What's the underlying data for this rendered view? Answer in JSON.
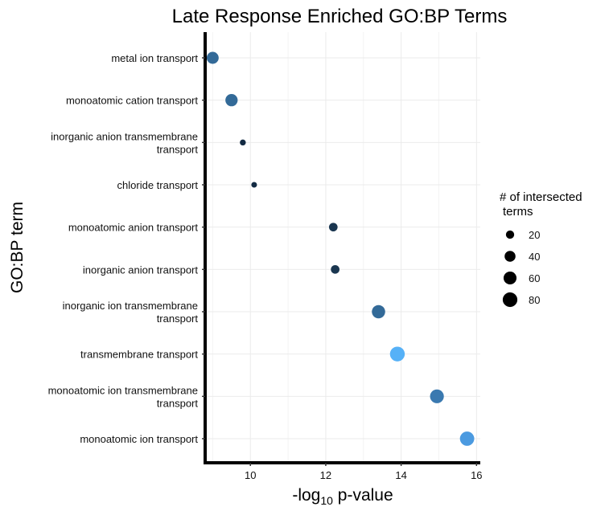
{
  "chart_data": {
    "type": "scatter",
    "title": "Late Response Enriched GO:BP Terms",
    "xlabel_main": "-log",
    "xlabel_sub": "10",
    "xlabel_rest": " p-value",
    "ylabel": "GO:BP term",
    "xlim": [
      8.8,
      16.1
    ],
    "x_ticks": [
      10,
      12,
      14,
      16
    ],
    "grid": true,
    "legend_position": "right",
    "size_legend": {
      "title_lines": [
        "# of intersected",
        "terms"
      ],
      "values": [
        20,
        40,
        60,
        80
      ]
    },
    "color_scale": {
      "low": "#132b43",
      "high": "#56b1f7"
    },
    "points": [
      {
        "term_lines": [
          "metal ion transport"
        ],
        "x": 9.0,
        "size": 50,
        "color": "#336a98"
      },
      {
        "term_lines": [
          "monoatomic cation transport"
        ],
        "x": 9.5,
        "size": 53,
        "color": "#336a98"
      },
      {
        "term_lines": [
          "inorganic anion transmembrane",
          "transport"
        ],
        "x": 9.8,
        "size": 8,
        "color": "#132b43"
      },
      {
        "term_lines": [
          "chloride transport"
        ],
        "x": 10.1,
        "size": 7,
        "color": "#132b43"
      },
      {
        "term_lines": [
          "monoatomic anion transport"
        ],
        "x": 12.2,
        "size": 22,
        "color": "#1a3650"
      },
      {
        "term_lines": [
          "inorganic anion transport"
        ],
        "x": 12.25,
        "size": 22,
        "color": "#1a3650"
      },
      {
        "term_lines": [
          "inorganic ion transmembrane",
          "transport"
        ],
        "x": 13.4,
        "size": 64,
        "color": "#336a98"
      },
      {
        "term_lines": [
          "transmembrane transport"
        ],
        "x": 13.9,
        "size": 82,
        "color": "#56b1f7"
      },
      {
        "term_lines": [
          "monoatomic ion transmembrane",
          "transport"
        ],
        "x": 14.95,
        "size": 70,
        "color": "#3a79b0"
      },
      {
        "term_lines": [
          "monoatomic ion transport"
        ],
        "x": 15.75,
        "size": 76,
        "color": "#4b9ae0"
      }
    ]
  }
}
